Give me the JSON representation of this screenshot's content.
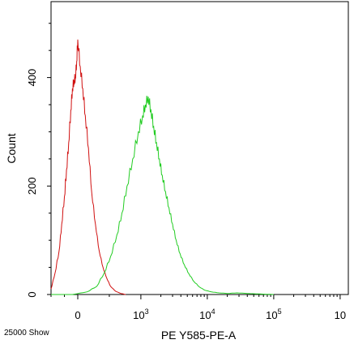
{
  "chart_data": {
    "type": "line",
    "xlabel": "PE Y585-PE-A",
    "ylabel": "Count",
    "footer_text": "25000 Show",
    "xscale": "biexponential (linear near 0, log above)",
    "xlim": [
      -1000,
      10000000
    ],
    "ylim": [
      0,
      540
    ],
    "x_ticks": [
      {
        "value": 0,
        "base": "0",
        "exp": ""
      },
      {
        "value": 1000,
        "base": "10",
        "exp": "3"
      },
      {
        "value": 10000,
        "base": "10",
        "exp": "4"
      },
      {
        "value": 100000,
        "base": "10",
        "exp": "5"
      },
      {
        "value": 1000000,
        "base": "10",
        "exp": ""
      }
    ],
    "y_ticks": [
      {
        "value": 0,
        "label": "0"
      },
      {
        "value": 200,
        "label": "200"
      },
      {
        "value": 400,
        "label": "400"
      }
    ],
    "grid": false,
    "legend": "none",
    "series": [
      {
        "color": "#d01010",
        "x": [
          -1000,
          -850,
          -700,
          -600,
          -500,
          -420,
          -340,
          -260,
          -200,
          -140,
          -90,
          -40,
          0,
          40,
          80,
          120,
          170,
          220,
          280,
          340,
          400,
          460,
          520,
          600,
          680,
          760
        ],
        "y": [
          10,
          40,
          80,
          130,
          180,
          230,
          280,
          340,
          380,
          395,
          400,
          430,
          470,
          420,
          380,
          330,
          270,
          190,
          130,
          80,
          50,
          30,
          15,
          6,
          2,
          0
        ]
      },
      {
        "color": "#22cc22",
        "x": [
          -1000,
          -200,
          150,
          300,
          420,
          520,
          620,
          700,
          780,
          870,
          960,
          1060,
          1170,
          1290,
          1420,
          1560,
          1720,
          1900,
          2100,
          2350,
          2650,
          3000,
          3400,
          3900,
          4500,
          5300,
          6300,
          7600,
          9200,
          11500,
          15000,
          20000,
          28000,
          40000,
          60000,
          100000
        ],
        "y": [
          0,
          0,
          5,
          15,
          40,
          70,
          110,
          150,
          200,
          250,
          300,
          330,
          350,
          365,
          340,
          310,
          280,
          250,
          220,
          190,
          160,
          130,
          100,
          75,
          55,
          38,
          24,
          14,
          8,
          5,
          3,
          2,
          3,
          2,
          1,
          0
        ]
      }
    ]
  }
}
